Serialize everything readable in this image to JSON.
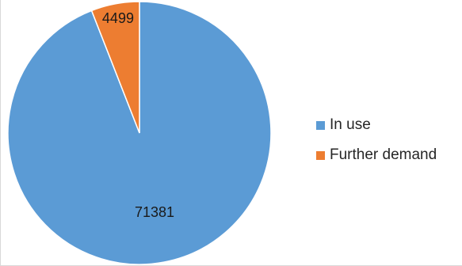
{
  "chart_data": {
    "type": "pie",
    "categories": [
      "In use",
      "Further demand"
    ],
    "values": [
      71381,
      4499
    ],
    "colors": [
      "#5b9bd5",
      "#ed7d31"
    ],
    "data_labels": [
      "71381",
      "4499"
    ],
    "legend": {
      "position": "right",
      "entries": [
        "In use",
        "Further demand"
      ]
    },
    "start_angle_deg": 0,
    "direction": "clockwise"
  }
}
